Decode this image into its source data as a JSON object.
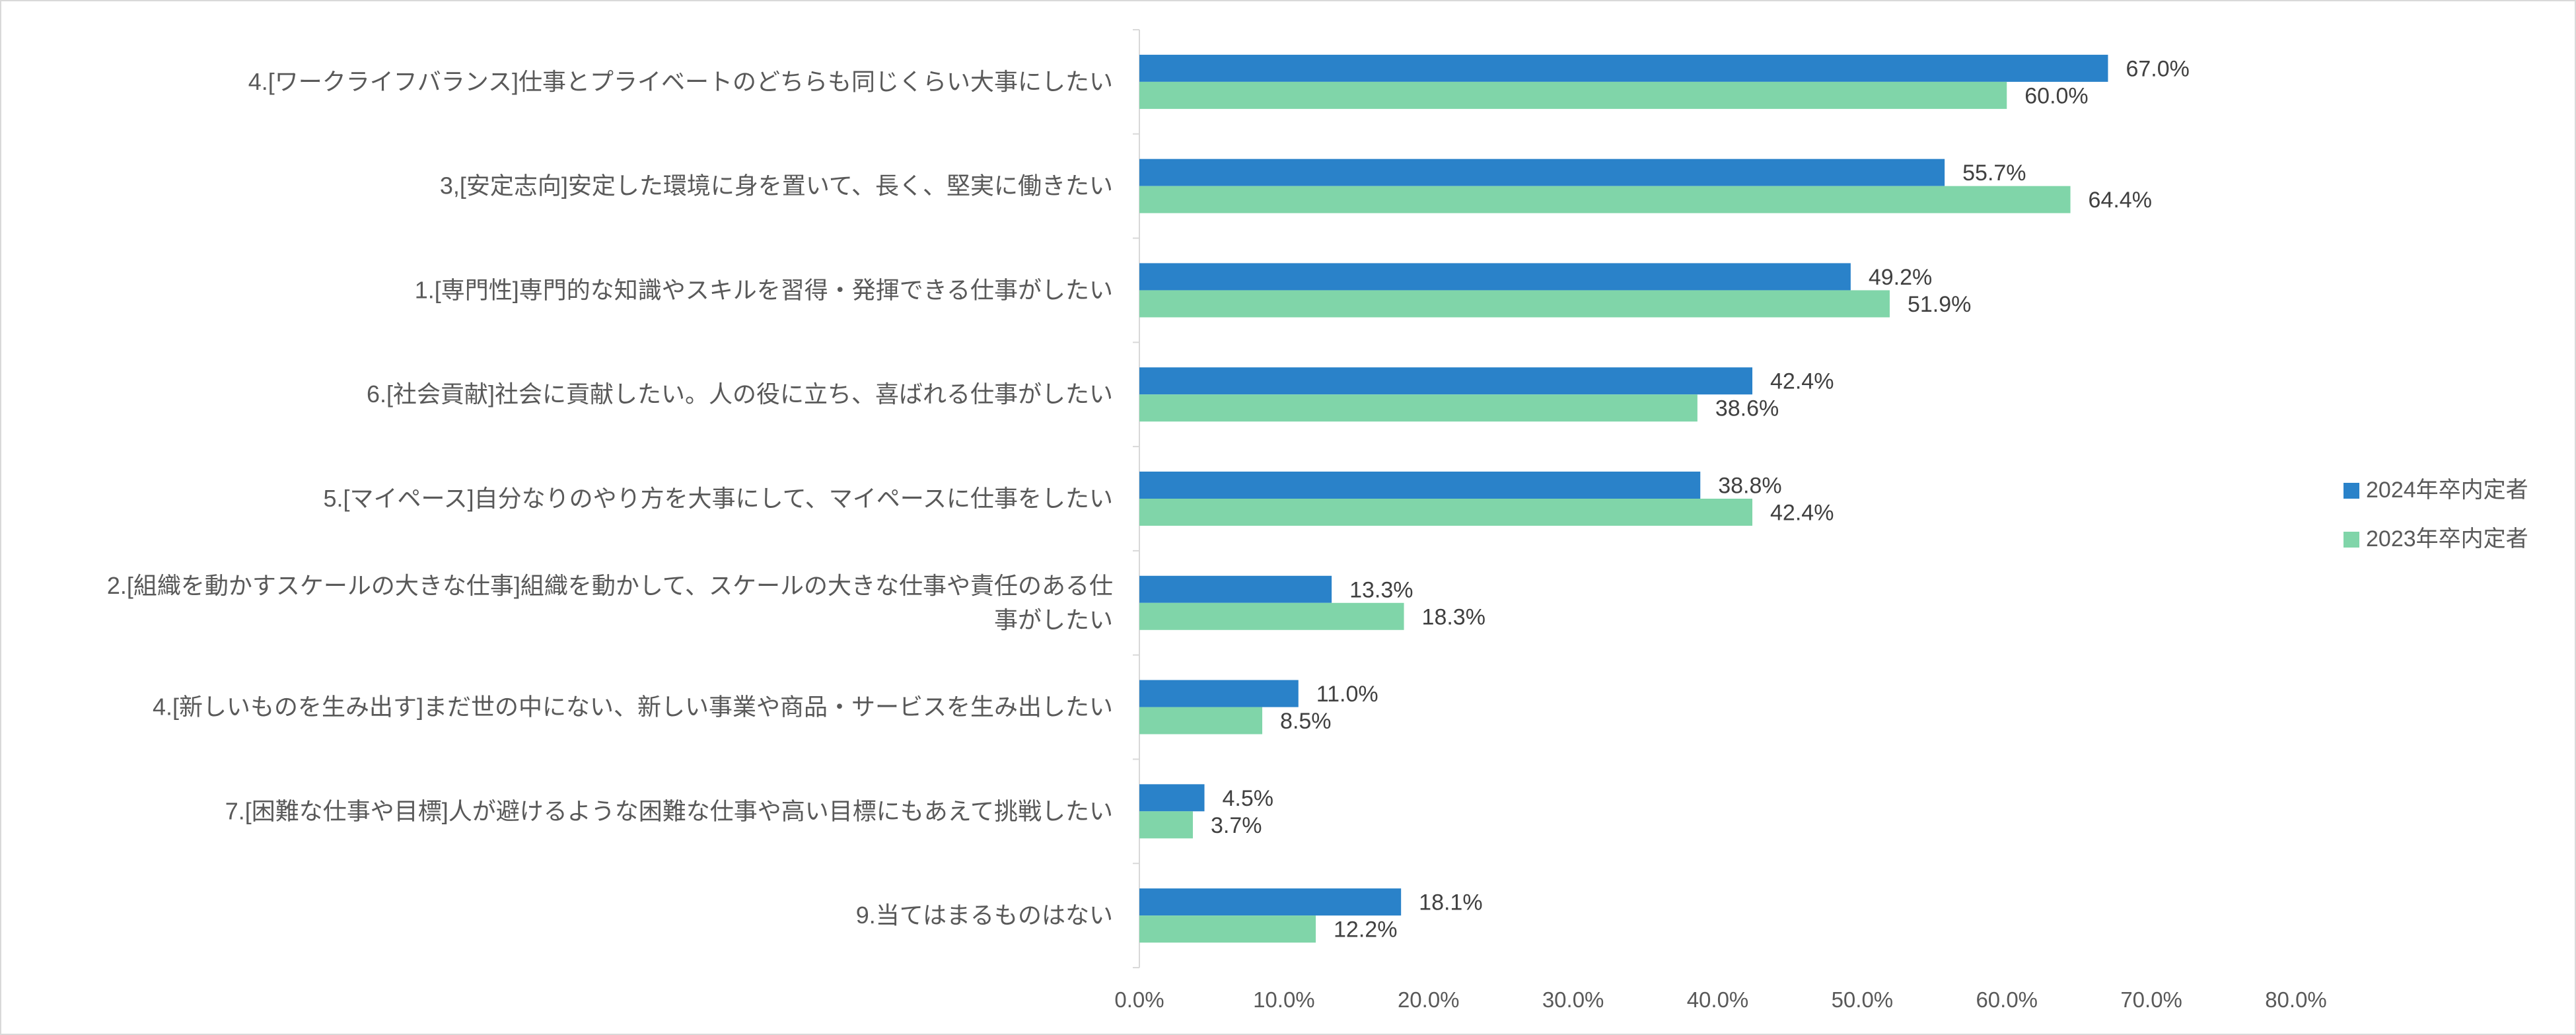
{
  "chart_data": {
    "type": "bar",
    "orientation": "horizontal",
    "title": "",
    "xlabel": "",
    "ylabel": "",
    "xlim": [
      0,
      80
    ],
    "x_ticks": [
      "0.0%",
      "10.0%",
      "20.0%",
      "30.0%",
      "40.0%",
      "50.0%",
      "60.0%",
      "70.0%",
      "80.0%"
    ],
    "grid": false,
    "legend_position": "right",
    "categories": [
      [
        "4.[ワークライフバランス]仕事とプライベートのどちらも同じくらい大事にしたい"
      ],
      [
        "3,[安定志向]安定した環境に身を置いて、長く、堅実に働きたい"
      ],
      [
        "1.[専門性]専門的な知識やスキルを習得・発揮できる仕事がしたい"
      ],
      [
        "6.[社会貢献]社会に貢献したい。人の役に立ち、喜ばれる仕事がしたい"
      ],
      [
        "5.[マイペース]自分なりのやり方を大事にして、マイペースに仕事をしたい"
      ],
      [
        "2.[組織を動かすスケールの大きな仕事]組織を動かして、スケールの大きな仕事や責任のある仕",
        "事がしたい"
      ],
      [
        "4.[新しいものを生み出す]まだ世の中にない、新しい事業や商品・サービスを生み出したい"
      ],
      [
        "7.[困難な仕事や目標]人が避けるような困難な仕事や高い目標にもあえて挑戦したい"
      ],
      [
        "9.当てはまるものはない"
      ]
    ],
    "series": [
      {
        "name": "2024年卒内定者",
        "color": "#2A82C9",
        "values": [
          67.0,
          55.7,
          49.2,
          42.4,
          38.8,
          13.3,
          11.0,
          4.5,
          18.1
        ],
        "labels": [
          "67.0%",
          "55.7%",
          "49.2%",
          "42.4%",
          "38.8%",
          "13.3%",
          "11.0%",
          "4.5%",
          "18.1%"
        ]
      },
      {
        "name": "2023年卒内定者",
        "color": "#80D5A9",
        "values": [
          60.0,
          64.4,
          51.9,
          38.6,
          42.4,
          18.3,
          8.5,
          3.7,
          12.2
        ],
        "labels": [
          "60.0%",
          "64.4%",
          "51.9%",
          "38.6%",
          "42.4%",
          "18.3%",
          "8.5%",
          "3.7%",
          "12.2%"
        ]
      }
    ]
  }
}
